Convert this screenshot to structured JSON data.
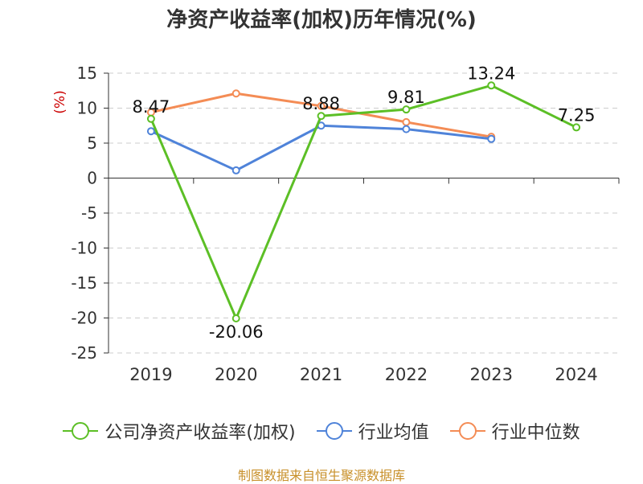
{
  "chart_data": {
    "type": "line",
    "title": "净资产收益率(加权)历年情况(%)",
    "ylabel": "(%)",
    "xlabel": "",
    "categories": [
      "2019",
      "2020",
      "2021",
      "2022",
      "2023",
      "2024"
    ],
    "ylim": [
      -25,
      15
    ],
    "yticks": [
      15,
      10,
      5,
      0,
      -5,
      -10,
      -15,
      -20,
      -25
    ],
    "grid": true,
    "legend_position": "bottom",
    "series": [
      {
        "name": "公司净资产收益率(加权)",
        "color": "#5cbf26",
        "values": [
          8.47,
          -20.06,
          8.88,
          9.81,
          13.24,
          7.25
        ],
        "labels": [
          "8.47",
          "-20.06",
          "8.88",
          "9.81",
          "13.24",
          "7.25"
        ]
      },
      {
        "name": "行业均值",
        "color": "#4f83d9",
        "values": [
          6.7,
          1.1,
          7.5,
          7.0,
          5.6,
          null
        ]
      },
      {
        "name": "行业中位数",
        "color": "#f48c55",
        "values": [
          9.4,
          12.1,
          10.3,
          8.0,
          5.9,
          null
        ]
      }
    ]
  },
  "footer": "制图数据来自恒生聚源数据库"
}
